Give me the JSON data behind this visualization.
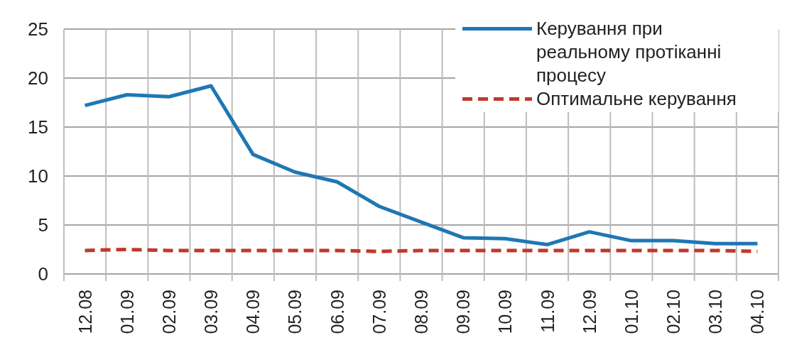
{
  "chart_data": {
    "type": "line",
    "categories": [
      "12.08",
      "01.09",
      "02.09",
      "03.09",
      "04.09",
      "05.09",
      "06.09",
      "07.09",
      "08.09",
      "09.09",
      "10.09",
      "11.09",
      "12.09",
      "01.10",
      "02.10",
      "03.10",
      "04.10"
    ],
    "series": [
      {
        "name": "Керування при реальному протіканні процесу",
        "color": "#1f77b4",
        "line_style": "solid",
        "values": [
          17.2,
          18.3,
          18.1,
          19.2,
          12.2,
          10.4,
          9.4,
          6.9,
          5.3,
          3.7,
          3.6,
          3.0,
          4.3,
          3.4,
          3.4,
          3.1,
          3.1
        ]
      },
      {
        "name": "Оптимальне керування",
        "color": "#c0392b",
        "line_style": "dashed",
        "values": [
          2.4,
          2.5,
          2.4,
          2.4,
          2.4,
          2.4,
          2.4,
          2.3,
          2.4,
          2.4,
          2.4,
          2.4,
          2.4,
          2.4,
          2.4,
          2.4,
          2.3
        ]
      }
    ],
    "ylim": [
      0,
      25
    ],
    "yticks": [
      0,
      5,
      10,
      15,
      20,
      25
    ],
    "grid": true,
    "legend": "top right"
  }
}
